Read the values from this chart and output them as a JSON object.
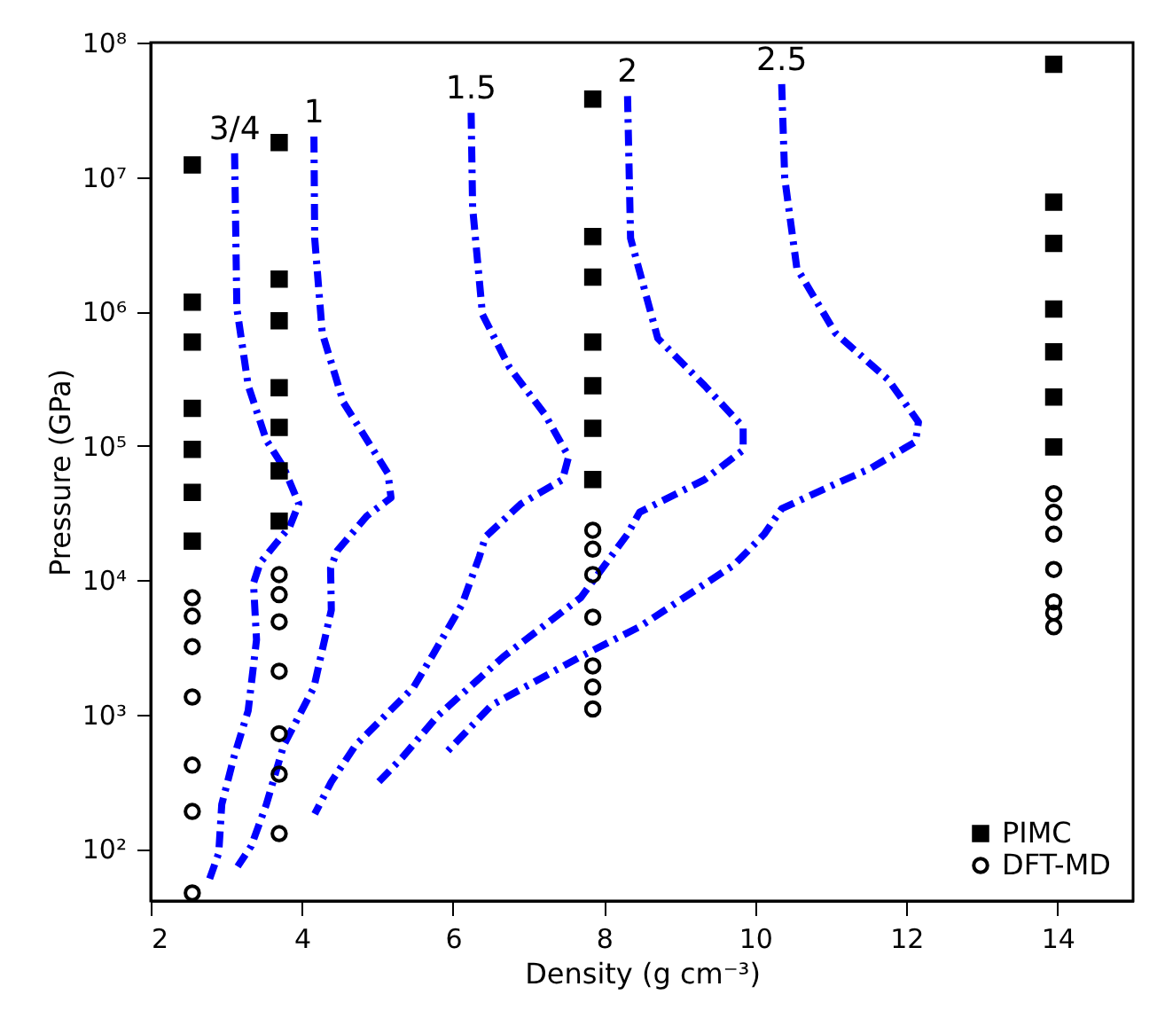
{
  "chart_data": {
    "type": "scatter",
    "xlabel": "Density (g cm⁻³)",
    "ylabel": "Pressure (GPa)",
    "xlim": [
      2,
      15
    ],
    "xticks": [
      2,
      4,
      6,
      8,
      10,
      12,
      14
    ],
    "ylim": [
      41,
      100000000
    ],
    "log": "y",
    "yticks": [
      {
        "value": 100,
        "label": "10²"
      },
      {
        "value": 1000,
        "label": "10³"
      },
      {
        "value": 10000,
        "label": "10⁴"
      },
      {
        "value": 100000,
        "label": "10⁵"
      },
      {
        "value": 1000000,
        "label": "10⁶"
      },
      {
        "value": 10000000,
        "label": "10⁷"
      },
      {
        "value": 100000000,
        "label": "10⁸"
      }
    ],
    "grid": false,
    "legend": "bottom right",
    "series": [
      {
        "type": "line",
        "name": "3/4",
        "color": "#0000ff",
        "line_style": "dashed",
        "x": [
          3.11,
          3.14,
          3.29,
          3.53,
          3.76,
          3.96,
          3.84,
          3.45,
          3.36,
          3.4,
          3.29,
          3.1,
          2.94,
          2.9,
          2.78
        ],
        "values": [
          15000000,
          1050000,
          280000,
          110000,
          69000,
          37000,
          25000,
          13500,
          9500,
          3600,
          1070,
          480,
          214,
          93,
          60
        ]
      },
      {
        "type": "line",
        "name": "1",
        "color": "#0000ff",
        "line_style": "dashed",
        "x": [
          4.16,
          4.17,
          4.27,
          4.55,
          4.9,
          5.14,
          5.18,
          4.86,
          4.47,
          4.38,
          4.39,
          4.16,
          3.76,
          3.53,
          3.33,
          3.15
        ],
        "values": [
          20000000,
          3500000,
          690000,
          210000,
          102000,
          62000,
          41000,
          30000,
          16600,
          12300,
          6000,
          1600,
          590,
          214,
          105,
          74
        ]
      },
      {
        "type": "line",
        "name": "1.5",
        "color": "#0000ff",
        "line_style": "dashed",
        "x": [
          6.24,
          6.26,
          6.39,
          6.75,
          7.22,
          7.53,
          7.45,
          6.9,
          6.43,
          6.35,
          6.12,
          5.72,
          5.48,
          4.71,
          4.39,
          4.17
        ],
        "values": [
          30000000,
          5900000,
          950000,
          380000,
          170000,
          83000,
          56000,
          37000,
          21000,
          15000,
          6600,
          2700,
          1600,
          590,
          316,
          182
        ]
      },
      {
        "type": "line",
        "name": "2",
        "color": "#0000ff",
        "line_style": "dashed",
        "x": [
          8.31,
          8.35,
          8.71,
          9.33,
          9.84,
          9.84,
          9.33,
          8.47,
          8.31,
          7.69,
          6.67,
          5.8,
          5.33,
          5.02
        ],
        "values": [
          40000000,
          3500000,
          630000,
          280000,
          138000,
          93000,
          56000,
          32000,
          22000,
          7400,
          2700,
          980,
          480,
          316
        ]
      },
      {
        "type": "line",
        "name": "2.5",
        "color": "#0000ff",
        "line_style": "dashed",
        "x": [
          10.35,
          10.39,
          10.55,
          11.06,
          11.76,
          12.16,
          12.12,
          11.53,
          11.06,
          10.35,
          10.12,
          9.72,
          8.47,
          7.69,
          6.51,
          5.88
        ],
        "values": [
          49000000,
          9800000,
          2100000,
          690000,
          310000,
          150000,
          107000,
          68000,
          52000,
          34000,
          22000,
          13000,
          4500,
          2700,
          1170,
          500
        ]
      },
      {
        "name": "PIMC",
        "color": "#000000",
        "marker": "square",
        "x": [
          2.55,
          2.55,
          2.55,
          2.55,
          2.55,
          2.55,
          2.55,
          3.7,
          3.7,
          3.7,
          3.7,
          3.7,
          3.7,
          3.7,
          7.85,
          7.85,
          7.85,
          7.85,
          7.85,
          7.85,
          7.85,
          13.95,
          13.95,
          13.95,
          13.95,
          13.95,
          13.95,
          13.95
        ],
        "values": [
          12300000,
          1170000,
          590000,
          190000,
          94000,
          45000,
          19500,
          18000000,
          1740000,
          850000,
          270000,
          137000,
          65000,
          27500,
          38000000,
          3600000,
          1800000,
          590000,
          280000,
          135000,
          56000,
          69000000,
          6500000,
          3200000,
          1040000,
          500000,
          230000,
          98000
        ]
      },
      {
        "name": "DFT-MD",
        "color": "#000000",
        "marker": "circle",
        "x": [
          2.55,
          2.55,
          2.55,
          2.55,
          2.55,
          2.55,
          2.55,
          3.7,
          3.7,
          3.7,
          3.7,
          3.7,
          3.7,
          3.7,
          7.85,
          7.85,
          7.85,
          7.85,
          7.85,
          7.85,
          7.85,
          13.95,
          13.95,
          13.95,
          13.95,
          13.95,
          13.95,
          13.95
        ],
        "values": [
          7400,
          5400,
          3200,
          1350,
          420,
          190,
          47,
          11000,
          7800,
          4900,
          2100,
          720,
          360,
          130,
          23500,
          17000,
          11000,
          5300,
          2300,
          1600,
          1100,
          44000,
          32000,
          22000,
          12000,
          6900,
          5700,
          4500
        ]
      }
    ]
  }
}
